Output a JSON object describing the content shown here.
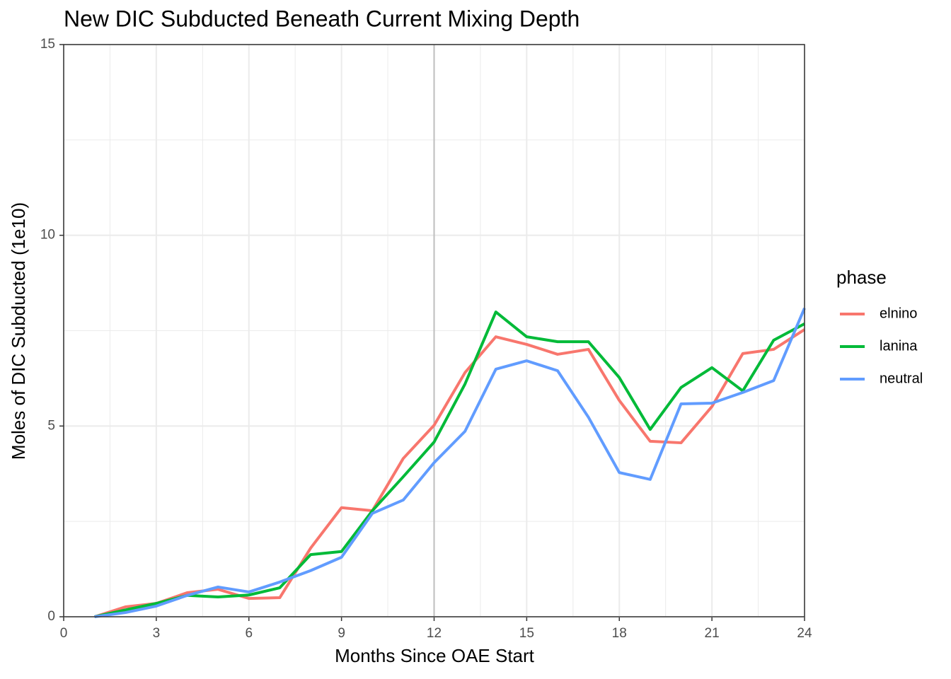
{
  "chart_data": {
    "type": "line",
    "title": "New DIC Subducted Beneath Current Mixing Depth",
    "x_label": "Months Since OAE Start",
    "y_label": "Moles of DIC Subducted (1e10)",
    "legend_title": "phase",
    "legend_position": "right",
    "grid": true,
    "vline": 12,
    "x": [
      1,
      2,
      3,
      4,
      5,
      6,
      7,
      8,
      9,
      10,
      11,
      12,
      13,
      14,
      15,
      16,
      17,
      18,
      19,
      20,
      21,
      22,
      23,
      24
    ],
    "series": [
      {
        "name": "elnino",
        "color": "#f8766d",
        "values": [
          0,
          0.26,
          0.35,
          0.63,
          0.72,
          0.48,
          0.5,
          1.8,
          2.86,
          2.78,
          4.15,
          5.02,
          6.4,
          7.34,
          7.14,
          6.88,
          7.01,
          5.67,
          4.6,
          4.56,
          5.51,
          6.9,
          7.01,
          7.53
        ]
      },
      {
        "name": "lanina",
        "color": "#00ba38",
        "values": [
          0,
          0.18,
          0.35,
          0.56,
          0.52,
          0.57,
          0.76,
          1.63,
          1.71,
          2.78,
          3.67,
          4.58,
          6.1,
          7.99,
          7.34,
          7.21,
          7.21,
          6.27,
          4.91,
          6.01,
          6.53,
          5.92,
          7.25,
          7.68
        ]
      },
      {
        "name": "neutral",
        "color": "#619cff",
        "values": [
          0,
          0.11,
          0.28,
          0.56,
          0.78,
          0.65,
          0.91,
          1.21,
          1.56,
          2.71,
          3.06,
          4.04,
          4.86,
          6.49,
          6.71,
          6.45,
          5.23,
          3.78,
          3.6,
          5.58,
          5.6,
          5.88,
          6.19,
          8.09
        ]
      }
    ],
    "xlim": [
      0,
      24
    ],
    "xticks": [
      0,
      3,
      6,
      9,
      12,
      15,
      18,
      21,
      24
    ],
    "ylim": [
      0,
      15
    ],
    "yticks": [
      0,
      5,
      10,
      15
    ]
  }
}
